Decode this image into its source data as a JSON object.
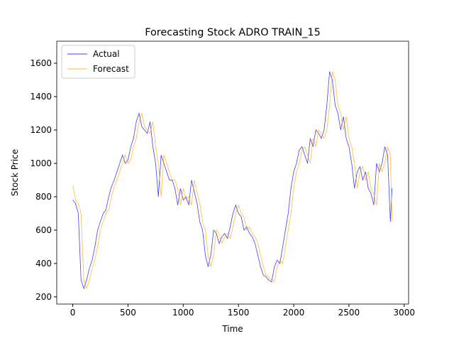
{
  "chart_data": {
    "type": "line",
    "title": "Forecasting Stock ADRO TRAIN_15",
    "xlabel": "Time",
    "ylabel": "Stock Price",
    "x": [
      0,
      25,
      50,
      75,
      100,
      125,
      150,
      175,
      200,
      225,
      250,
      275,
      300,
      325,
      350,
      375,
      400,
      425,
      450,
      475,
      500,
      525,
      550,
      575,
      600,
      625,
      650,
      675,
      700,
      725,
      750,
      775,
      800,
      825,
      850,
      875,
      900,
      925,
      950,
      975,
      1000,
      1025,
      1050,
      1075,
      1100,
      1125,
      1150,
      1175,
      1200,
      1225,
      1250,
      1275,
      1300,
      1325,
      1350,
      1375,
      1400,
      1425,
      1450,
      1475,
      1500,
      1525,
      1550,
      1575,
      1600,
      1625,
      1650,
      1675,
      1700,
      1725,
      1750,
      1775,
      1800,
      1825,
      1850,
      1875,
      1900,
      1925,
      1950,
      1975,
      2000,
      2025,
      2050,
      2075,
      2100,
      2125,
      2150,
      2175,
      2200,
      2225,
      2250,
      2275,
      2300,
      2325,
      2350,
      2375,
      2400,
      2425,
      2450,
      2475,
      2500,
      2525,
      2550,
      2575,
      2600,
      2625,
      2650,
      2675,
      2700,
      2725,
      2750,
      2775,
      2800,
      2825,
      2850,
      2875,
      2890
    ],
    "series": [
      {
        "name": "Actual",
        "color": "#0000ff",
        "values": [
          780,
          760,
          700,
          300,
          250,
          300,
          370,
          420,
          500,
          600,
          650,
          700,
          720,
          800,
          860,
          900,
          950,
          1000,
          1050,
          1000,
          1020,
          1100,
          1150,
          1250,
          1300,
          1220,
          1200,
          1180,
          1250,
          1100,
          1000,
          800,
          1050,
          1000,
          950,
          900,
          900,
          850,
          750,
          850,
          780,
          800,
          750,
          900,
          830,
          760,
          650,
          600,
          450,
          380,
          450,
          600,
          580,
          520,
          560,
          580,
          550,
          620,
          700,
          750,
          700,
          680,
          600,
          620,
          580,
          560,
          520,
          450,
          380,
          330,
          320,
          300,
          290,
          380,
          420,
          400,
          500,
          600,
          700,
          850,
          950,
          1000,
          1080,
          1100,
          1050,
          1000,
          1150,
          1100,
          1200,
          1180,
          1150,
          1200,
          1350,
          1550,
          1500,
          1350,
          1300,
          1200,
          1280,
          1150,
          1100,
          1000,
          850,
          950,
          980,
          900,
          950,
          850,
          820,
          750,
          1000,
          950,
          1000,
          1100,
          1050,
          650,
          850
        ]
      },
      {
        "name": "Forecast",
        "color": "#ffa500",
        "values": [
          870,
          780,
          760,
          700,
          300,
          250,
          300,
          370,
          420,
          500,
          600,
          650,
          700,
          720,
          800,
          860,
          900,
          950,
          1000,
          1050,
          1000,
          1020,
          1100,
          1150,
          1250,
          1300,
          1220,
          1200,
          1180,
          1250,
          1100,
          1000,
          800,
          1050,
          1000,
          950,
          900,
          900,
          850,
          750,
          850,
          780,
          800,
          750,
          900,
          830,
          760,
          650,
          600,
          450,
          380,
          450,
          600,
          580,
          520,
          560,
          580,
          550,
          620,
          700,
          750,
          700,
          680,
          600,
          620,
          580,
          560,
          520,
          450,
          380,
          330,
          320,
          300,
          290,
          380,
          420,
          400,
          500,
          600,
          700,
          850,
          950,
          1000,
          1080,
          1100,
          1050,
          1000,
          1150,
          1100,
          1200,
          1180,
          1150,
          1200,
          1350,
          1550,
          1500,
          1350,
          1300,
          1200,
          1280,
          1150,
          1100,
          1000,
          850,
          950,
          980,
          900,
          950,
          850,
          820,
          750,
          1000,
          950,
          1000,
          1100,
          1050,
          650
        ]
      }
    ],
    "xlim": [
      -145,
      3040
    ],
    "ylim": [
      157,
      1732
    ],
    "xticks": [
      0,
      500,
      1000,
      1500,
      2000,
      2500,
      3000
    ],
    "yticks": [
      200,
      400,
      600,
      800,
      1000,
      1200,
      1400,
      1600
    ],
    "legend": "upper left"
  }
}
